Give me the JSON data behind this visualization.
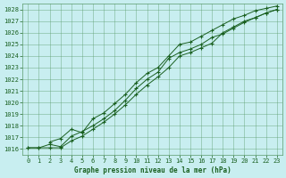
{
  "title": "Graphe pression niveau de la mer (hPa)",
  "bg_color": "#c8eef0",
  "grid_color": "#5a9a6a",
  "line_color": "#1a6020",
  "xlim": [
    -0.5,
    23.5
  ],
  "ylim": [
    1015.5,
    1028.5
  ],
  "yticks": [
    1016,
    1017,
    1018,
    1019,
    1020,
    1021,
    1022,
    1023,
    1024,
    1025,
    1026,
    1027,
    1028
  ],
  "xticks": [
    0,
    1,
    2,
    3,
    4,
    5,
    6,
    7,
    8,
    9,
    10,
    11,
    12,
    13,
    14,
    15,
    16,
    17,
    18,
    19,
    20,
    21,
    22,
    23
  ],
  "line1_x": [
    0,
    1,
    2,
    3,
    4,
    5,
    6,
    7,
    8,
    9,
    10,
    11,
    12,
    13,
    14,
    15,
    16,
    17,
    18,
    19,
    20,
    21,
    22,
    23
  ],
  "line1_y": [
    1016.1,
    1016.1,
    1016.1,
    1016.1,
    1016.7,
    1017.1,
    1017.7,
    1018.3,
    1019.0,
    1019.8,
    1020.7,
    1021.5,
    1022.2,
    1023.0,
    1024.0,
    1024.3,
    1024.7,
    1025.1,
    1026.0,
    1026.5,
    1027.0,
    1027.3,
    1027.7,
    1028.0
  ],
  "line2_x": [
    0,
    1,
    2,
    3,
    4,
    5,
    6,
    7,
    8,
    9,
    10,
    11,
    12,
    13,
    14,
    15,
    16,
    17,
    18,
    19,
    20,
    21,
    22,
    23
  ],
  "line2_y": [
    1016.1,
    1016.1,
    1016.4,
    1016.2,
    1017.1,
    1017.5,
    1018.0,
    1018.6,
    1019.3,
    1020.2,
    1021.2,
    1022.0,
    1022.6,
    1023.8,
    1024.3,
    1024.6,
    1025.0,
    1025.6,
    1025.9,
    1026.4,
    1026.9,
    1027.3,
    1027.7,
    1028.0
  ],
  "line3_x": [
    2,
    3,
    4,
    5,
    6,
    7,
    8,
    9,
    10,
    11,
    12,
    13,
    14,
    15,
    16,
    17,
    18,
    19,
    20,
    21,
    22,
    23
  ],
  "line3_y": [
    1016.6,
    1016.9,
    1017.7,
    1017.4,
    1018.6,
    1019.1,
    1019.9,
    1020.7,
    1021.7,
    1022.5,
    1023.0,
    1024.0,
    1025.0,
    1025.2,
    1025.7,
    1026.2,
    1026.7,
    1027.2,
    1027.5,
    1027.9,
    1028.1,
    1028.3
  ]
}
